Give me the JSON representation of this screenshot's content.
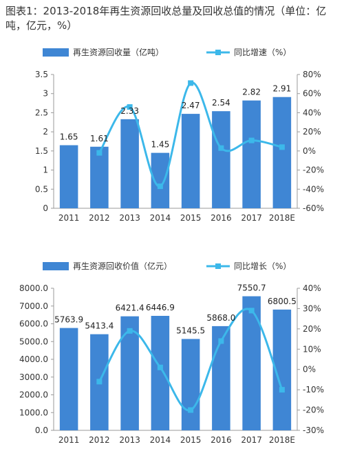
{
  "title": "图表1：2013-2018年再生资源回收总量及回收总值的情况（单位：亿吨，亿元，%）",
  "colors": {
    "bar": "#3f86d4",
    "line": "#3cb8ea"
  },
  "chart_data": [
    {
      "type": "bar+line",
      "categories": [
        "2011",
        "2012",
        "2013",
        "2014",
        "2015",
        "2016",
        "2017",
        "2018E"
      ],
      "series": [
        {
          "name": "再生资源回收量（亿吨）",
          "type": "bar",
          "axis": "left",
          "values": [
            1.65,
            1.61,
            2.33,
            1.45,
            2.47,
            2.54,
            2.82,
            2.91
          ],
          "labels": [
            "1.65",
            "1.61",
            "2.33",
            "1.45",
            "2.47",
            "2.54",
            "2.82",
            "2.91"
          ]
        },
        {
          "name": "同比增速（%）",
          "type": "line",
          "axis": "right",
          "values": [
            null,
            -2,
            46,
            -37,
            71,
            3,
            11,
            4
          ]
        }
      ],
      "ylim_left": [
        0,
        3.5
      ],
      "yticks_left": [
        "0",
        "0.5",
        "1",
        "1.5",
        "2",
        "2.5",
        "3",
        "3.5"
      ],
      "ylim_right": [
        -60,
        80
      ],
      "yticks_right": [
        "-60%",
        "-40%",
        "-20%",
        "0%",
        "20%",
        "40%",
        "60%",
        "80%"
      ],
      "legend": "top"
    },
    {
      "type": "bar+line",
      "categories": [
        "2011",
        "2012",
        "2013",
        "2014",
        "2015",
        "2016",
        "2017",
        "2018E"
      ],
      "series": [
        {
          "name": "再生资源回收价值（亿元）",
          "type": "bar",
          "axis": "left",
          "values": [
            5763.9,
            5413.4,
            6421.4,
            6446.9,
            5145.5,
            5868.0,
            7550.7,
            6800.5
          ],
          "labels": [
            "5763.9",
            "5413.4",
            "6421.4",
            "6446.9",
            "5145.5",
            "5868.0",
            "7550.7",
            "6800.5"
          ]
        },
        {
          "name": "同比增长（%）",
          "type": "line",
          "axis": "right",
          "values": [
            null,
            -6,
            19,
            1,
            -20,
            14,
            29,
            -10
          ]
        }
      ],
      "ylim_left": [
        0,
        8000
      ],
      "yticks_left": [
        "0.0",
        "1000.0",
        "2000.0",
        "3000.0",
        "4000.0",
        "5000.0",
        "6000.0",
        "7000.0",
        "8000.0"
      ],
      "ylim_right": [
        -30,
        40
      ],
      "yticks_right": [
        "-30%",
        "-20%",
        "-10%",
        "0%",
        "10%",
        "20%",
        "30%",
        "40%"
      ],
      "legend": "top"
    }
  ]
}
